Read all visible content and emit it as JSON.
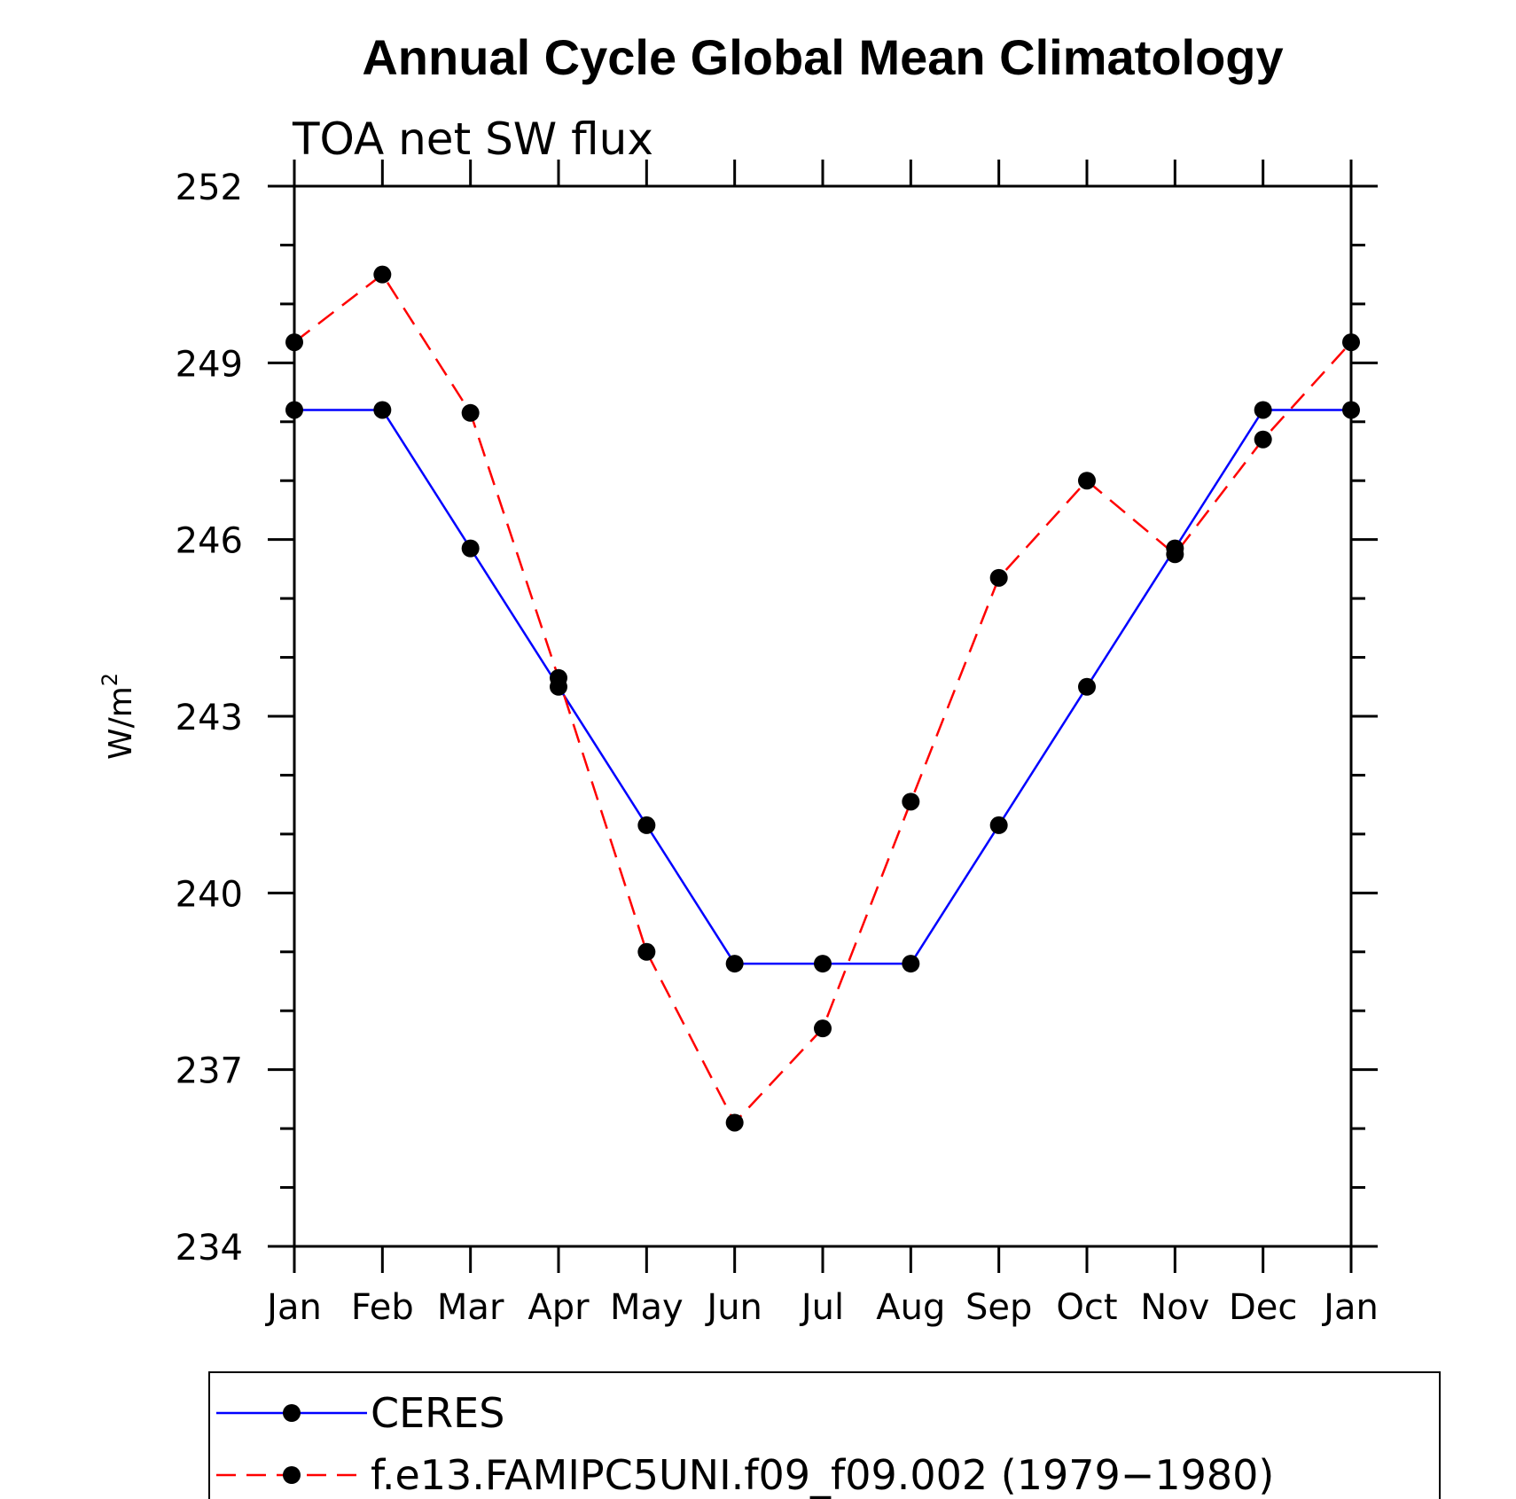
{
  "chart_data": {
    "type": "line",
    "title": "Annual Cycle Global Mean Climatology",
    "subtitle": "TOA net SW flux",
    "ylabel": "W/m",
    "ylabel_sup": "2",
    "xlabel": "",
    "categories": [
      "Jan",
      "Feb",
      "Mar",
      "Apr",
      "May",
      "Jun",
      "Jul",
      "Aug",
      "Sep",
      "Oct",
      "Nov",
      "Dec",
      "Jan"
    ],
    "yticks": [
      234,
      237,
      240,
      243,
      246,
      249,
      252
    ],
    "ylim": [
      234,
      252
    ],
    "grid": false,
    "legend_position": "bottom",
    "series": [
      {
        "name": "CERES",
        "color": "#0000ff",
        "dash": "solid",
        "values": [
          248.2,
          248.2,
          245.85,
          243.5,
          241.15,
          238.8,
          238.8,
          238.8,
          241.15,
          243.5,
          245.85,
          248.2,
          248.2
        ]
      },
      {
        "name": "f.e13.FAMIPC5UNI.f09_f09.002 (1979−1980)",
        "color": "#ff0000",
        "dash": "dashed",
        "values": [
          249.35,
          250.5,
          248.15,
          243.65,
          239.0,
          236.1,
          237.7,
          241.55,
          245.35,
          247.0,
          245.75,
          247.7,
          249.35
        ]
      }
    ]
  }
}
